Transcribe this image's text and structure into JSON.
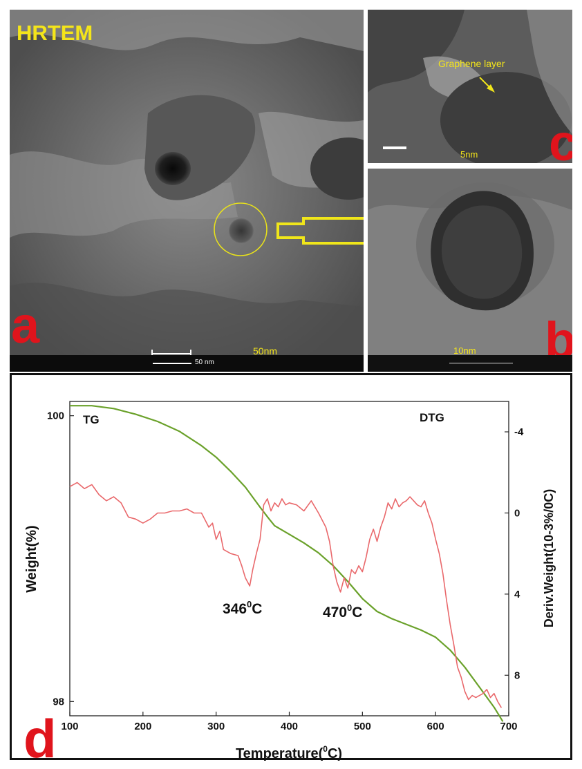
{
  "panels": {
    "a": {
      "letter": "a",
      "title": "HRTEM",
      "scale_text": "50nm",
      "scalebar_text": "50 nm"
    },
    "b": {
      "letter": "b",
      "scale_text": "10nm",
      "scalebar_text": "10 nm"
    },
    "c": {
      "letter": "c",
      "scale_text": "5nm",
      "annotation": "Graphene layer"
    },
    "d": {
      "letter": "d"
    }
  },
  "colors": {
    "tg": "#6aa12a",
    "dtg": "#e9686b",
    "label_red": "#e0141c",
    "label_yellow": "#f4e51a"
  },
  "chart_data": {
    "type": "line",
    "xlabel": "Temperature(0C)",
    "xlabel_base": "Temperature(",
    "xlabel_sup": "0",
    "xlabel_end": "C)",
    "ylabel_left": "Weight(%)",
    "ylabel_right": "Deriv.Weight(10-3%/0C)",
    "xlim": [
      100,
      700
    ],
    "x_ticks": [
      100,
      200,
      300,
      400,
      500,
      600,
      700
    ],
    "y_left_ticks": [
      98,
      100
    ],
    "ylim_left": [
      97.9,
      100.1
    ],
    "y_right_ticks": [
      -4,
      0,
      4,
      8
    ],
    "ylim_right": [
      10,
      -5.5
    ],
    "legend_tg": "TG",
    "legend_dtg": "DTG",
    "annotations": [
      {
        "x": 346,
        "base": "346",
        "sup": "0",
        "end": "C",
        "text": "3460C"
      },
      {
        "x": 470,
        "base": "470",
        "sup": "0",
        "end": "C",
        "text": "4700C"
      }
    ],
    "series": [
      {
        "name": "TG",
        "axis": "left",
        "x": [
          100,
          130,
          160,
          190,
          220,
          250,
          280,
          300,
          320,
          340,
          360,
          372,
          380,
          400,
          420,
          440,
          460,
          480,
          500,
          520,
          540,
          560,
          580,
          600,
          620,
          640,
          660,
          680,
          692
        ],
        "values": [
          100.07,
          100.07,
          100.05,
          100.01,
          99.96,
          99.89,
          99.79,
          99.71,
          99.61,
          99.5,
          99.36,
          99.28,
          99.23,
          99.17,
          99.11,
          99.04,
          98.95,
          98.84,
          98.72,
          98.63,
          98.58,
          98.54,
          98.5,
          98.45,
          98.36,
          98.24,
          98.1,
          97.96,
          97.86
        ]
      },
      {
        "name": "DTG",
        "axis": "right",
        "x": [
          100,
          110,
          120,
          130,
          140,
          150,
          160,
          170,
          180,
          190,
          200,
          210,
          220,
          230,
          240,
          250,
          260,
          270,
          280,
          290,
          295,
          300,
          305,
          310,
          320,
          330,
          335,
          340,
          346,
          350,
          355,
          360,
          365,
          370,
          375,
          380,
          385,
          390,
          395,
          400,
          410,
          420,
          430,
          440,
          450,
          455,
          460,
          465,
          470,
          475,
          480,
          485,
          490,
          495,
          500,
          505,
          510,
          515,
          520,
          525,
          530,
          535,
          540,
          545,
          550,
          555,
          560,
          565,
          570,
          575,
          580,
          585,
          590,
          595,
          600,
          605,
          610,
          615,
          620,
          625,
          630,
          635,
          640,
          645,
          650,
          655,
          660,
          665,
          670,
          675,
          680,
          685,
          690
        ],
        "values": [
          -1.3,
          -1.5,
          -1.2,
          -1.4,
          -0.9,
          -0.6,
          -0.8,
          -0.5,
          0.2,
          0.3,
          0.5,
          0.3,
          0.0,
          0.0,
          -0.1,
          -0.1,
          -0.2,
          0.0,
          0.0,
          0.7,
          0.5,
          1.3,
          0.9,
          1.8,
          2.0,
          2.1,
          2.6,
          3.2,
          3.6,
          2.8,
          2.0,
          1.3,
          -0.4,
          -0.7,
          -0.1,
          -0.5,
          -0.3,
          -0.7,
          -0.4,
          -0.5,
          -0.4,
          -0.1,
          -0.6,
          0.0,
          0.7,
          1.4,
          2.6,
          3.4,
          3.9,
          3.2,
          3.7,
          2.8,
          3.0,
          2.6,
          2.9,
          2.2,
          1.3,
          0.8,
          1.4,
          0.7,
          0.2,
          -0.5,
          -0.2,
          -0.7,
          -0.3,
          -0.5,
          -0.6,
          -0.8,
          -0.6,
          -0.4,
          -0.3,
          -0.6,
          0.0,
          0.5,
          1.3,
          2.0,
          3.0,
          4.3,
          5.5,
          6.5,
          7.6,
          8.1,
          8.8,
          9.2,
          9.0,
          9.1,
          9.0,
          8.9,
          8.7,
          9.1,
          8.9,
          9.3,
          9.6
        ]
      }
    ]
  }
}
